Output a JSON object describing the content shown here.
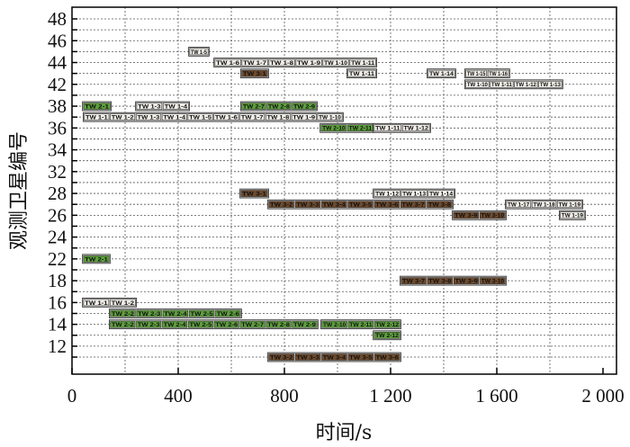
{
  "chart_data": {
    "type": "gantt",
    "xlabel": "时间/s",
    "ylabel": "观测卫星编号",
    "xlim": [
      0,
      2000
    ],
    "xticks": [
      0,
      400,
      800,
      1200,
      1600,
      2000
    ],
    "xtick_labels": [
      "0",
      "400",
      "800",
      "1 200",
      "1 600",
      "2 000"
    ],
    "x_gridstep": 200,
    "rows": [
      48,
      47,
      46,
      45,
      44,
      43,
      42,
      40,
      38,
      37,
      36,
      35,
      34,
      33,
      32,
      30,
      28,
      27,
      26,
      25,
      24,
      23,
      22,
      20,
      18,
      17,
      16,
      15,
      14,
      13,
      12,
      11
    ],
    "ytick_labels": [
      "48",
      "46",
      "44",
      "42",
      "38",
      "36",
      "34",
      "32",
      "28",
      "26",
      "24",
      "22",
      "18",
      "16",
      "14",
      "12"
    ],
    "grid": true,
    "colors": {
      "TW1": "#f1eee8",
      "TW2": "#5da03c",
      "TW3": "#6e4b2e",
      "border": "#333333"
    },
    "groups": [
      {
        "row": 45,
        "type": "TW1",
        "start": 441,
        "end": 515,
        "labels": [
          "TW 1-5"
        ]
      },
      {
        "row": 44,
        "type": "TW1",
        "start": 536,
        "end": 1146,
        "labels": [
          "TW 1-6",
          "TW 1-7",
          "TW 1-8",
          "TW 1-9",
          "TW 1-10",
          "TW 1-11"
        ]
      },
      {
        "row": 43,
        "type": "TW3",
        "start": 637,
        "end": 739,
        "labels": [
          "TW 3-1"
        ]
      },
      {
        "row": 43,
        "type": "TW1",
        "start": 1037,
        "end": 1146,
        "labels": [
          "TW 1-11"
        ]
      },
      {
        "row": 43,
        "type": "TW1",
        "start": 1339,
        "end": 1444,
        "labels": [
          "TW 1-14"
        ]
      },
      {
        "row": 43,
        "type": "TW1",
        "start": 1481,
        "end": 1647,
        "labels": [
          "TW 1-15",
          "TW 1-16"
        ]
      },
      {
        "row": 42,
        "type": "TW1",
        "start": 1481,
        "end": 1847,
        "labels": [
          "TW 1-10",
          "TW 1-11",
          "TW 1-12",
          "TW 1-13"
        ]
      },
      {
        "row": 38,
        "type": "TW2",
        "start": 41,
        "end": 146,
        "labels": [
          "TW 2-1"
        ]
      },
      {
        "row": 38,
        "type": "TW1",
        "start": 241,
        "end": 441,
        "labels": [
          "TW 1-3",
          "TW 1-4"
        ]
      },
      {
        "row": 38,
        "type": "TW2",
        "start": 637,
        "end": 922,
        "labels": [
          "TW 2-7",
          "TW 2-8",
          "TW 2-9"
        ]
      },
      {
        "row": 37,
        "type": "TW1",
        "start": 44,
        "end": 1020,
        "labels": [
          "TW 1-1",
          "TW 1-2",
          "TW 1-3",
          "TW 1-4",
          "TW 1-5",
          "TW 1-6",
          "TW 1-7",
          "TW 1-8",
          "TW 1-9",
          "TW 1-10"
        ]
      },
      {
        "row": 36,
        "type": "TW2",
        "start": 936,
        "end": 1136,
        "labels": [
          "TW 2-10",
          "TW 2-11"
        ]
      },
      {
        "row": 36,
        "type": "TW1",
        "start": 1136,
        "end": 1349,
        "labels": [
          "TW 1-11",
          "TW 1-12"
        ]
      },
      {
        "row": 28,
        "type": "TW3",
        "start": 634,
        "end": 739,
        "labels": [
          "TW 3-1"
        ]
      },
      {
        "row": 28,
        "type": "TW1",
        "start": 1136,
        "end": 1441,
        "labels": [
          "TW 1-12",
          "TW 1-13",
          "TW 1-14"
        ]
      },
      {
        "row": 27,
        "type": "TW3",
        "start": 739,
        "end": 1434,
        "labels": [
          "TW 3-2",
          "TW 3-3",
          "TW 3-4",
          "TW 3-5",
          "TW 3-6",
          "TW 3-7",
          "TW 3-8"
        ]
      },
      {
        "row": 27,
        "type": "TW1",
        "start": 1634,
        "end": 1922,
        "labels": [
          "TW 1-17",
          "TW 1-18",
          "TW 1-19"
        ]
      },
      {
        "row": 26,
        "type": "TW3",
        "start": 1434,
        "end": 1634,
        "labels": [
          "TW 3-9",
          "TW 3-10"
        ]
      },
      {
        "row": 26,
        "type": "TW1",
        "start": 1837,
        "end": 1932,
        "labels": [
          "TW 1-19"
        ]
      },
      {
        "row": 22,
        "type": "TW2",
        "start": 41,
        "end": 142,
        "labels": [
          "TW 2-1"
        ]
      },
      {
        "row": 18,
        "type": "TW3",
        "start": 1237,
        "end": 1634,
        "labels": [
          "TW 3-7",
          "TW 3-8",
          "TW 3-9",
          "TW 3-10"
        ]
      },
      {
        "row": 16,
        "type": "TW1",
        "start": 41,
        "end": 241,
        "labels": [
          "TW 1-1",
          "TW 1-2"
        ]
      },
      {
        "row": 15,
        "type": "TW2",
        "start": 142,
        "end": 637,
        "labels": [
          "TW 2-2",
          "TW 2-3",
          "TW 2-4",
          "TW 2-5",
          "TW 2-6"
        ]
      },
      {
        "row": 14,
        "type": "TW2",
        "start": 142,
        "end": 925,
        "labels": [
          "TW 2-2",
          "TW 2-3",
          "TW 2-4",
          "TW 2-5",
          "TW 2-6",
          "TW 2-7",
          "TW 2-8",
          "TW 2-9"
        ]
      },
      {
        "row": 14,
        "type": "TW2",
        "start": 939,
        "end": 1237,
        "labels": [
          "TW 2-10",
          "TW 2-11",
          "TW 2-12"
        ]
      },
      {
        "row": 13,
        "type": "TW2",
        "start": 1136,
        "end": 1237,
        "labels": [
          "TW 2-12"
        ]
      },
      {
        "row": 11,
        "type": "TW3",
        "start": 739,
        "end": 1237,
        "labels": [
          "TW 3-2",
          "TW 3-3",
          "TW 3-4",
          "TW 3-5",
          "TW 3-6"
        ]
      }
    ]
  }
}
